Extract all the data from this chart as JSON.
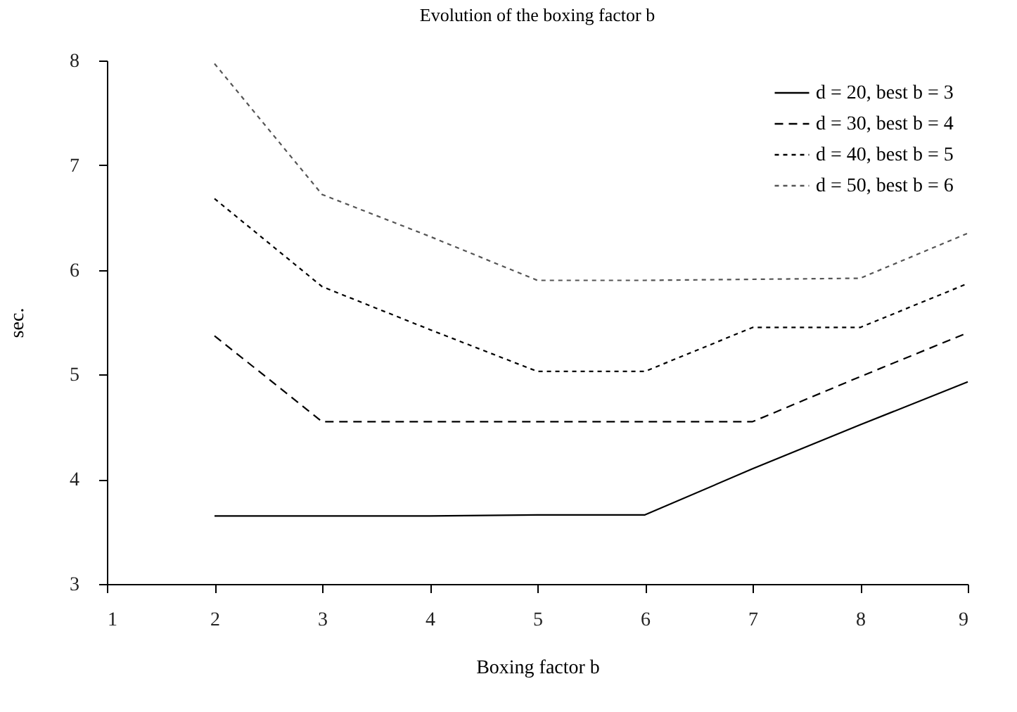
{
  "chart_data": {
    "type": "line",
    "title": "Evolution of the boxing factor b",
    "xlabel": "Boxing factor b",
    "ylabel": "sec.",
    "x": [
      2,
      3,
      4,
      5,
      6,
      7,
      8,
      9
    ],
    "series": [
      {
        "name": "d = 20, best b = 3",
        "color": "#000000",
        "line_style": "solid",
        "values": [
          3.65,
          3.65,
          3.65,
          3.66,
          3.66,
          4.1,
          4.52,
          4.93
        ]
      },
      {
        "name": "d = 30, best b = 4",
        "color": "#000000",
        "line_style": "dashed",
        "values": [
          5.37,
          4.55,
          4.55,
          4.55,
          4.55,
          4.55,
          4.98,
          5.4
        ]
      },
      {
        "name": "d = 40, best b = 5",
        "color": "#000000",
        "line_style": "dotted",
        "values": [
          6.68,
          5.84,
          5.43,
          5.03,
          5.03,
          5.45,
          5.45,
          5.87
        ]
      },
      {
        "name": "d = 50, best b = 6",
        "color": "#555555",
        "line_style": "dotted",
        "values": [
          7.97,
          6.72,
          6.32,
          5.9,
          5.9,
          5.91,
          5.92,
          6.35
        ]
      }
    ],
    "xlim": [
      1,
      9
    ],
    "xticks": [
      1,
      2,
      3,
      4,
      5,
      6,
      7,
      8,
      9
    ],
    "ylim": [
      3,
      8
    ],
    "yticks": [
      3,
      4,
      5,
      6,
      7,
      8
    ],
    "grid": false,
    "legend": "top right",
    "marker": "none"
  }
}
